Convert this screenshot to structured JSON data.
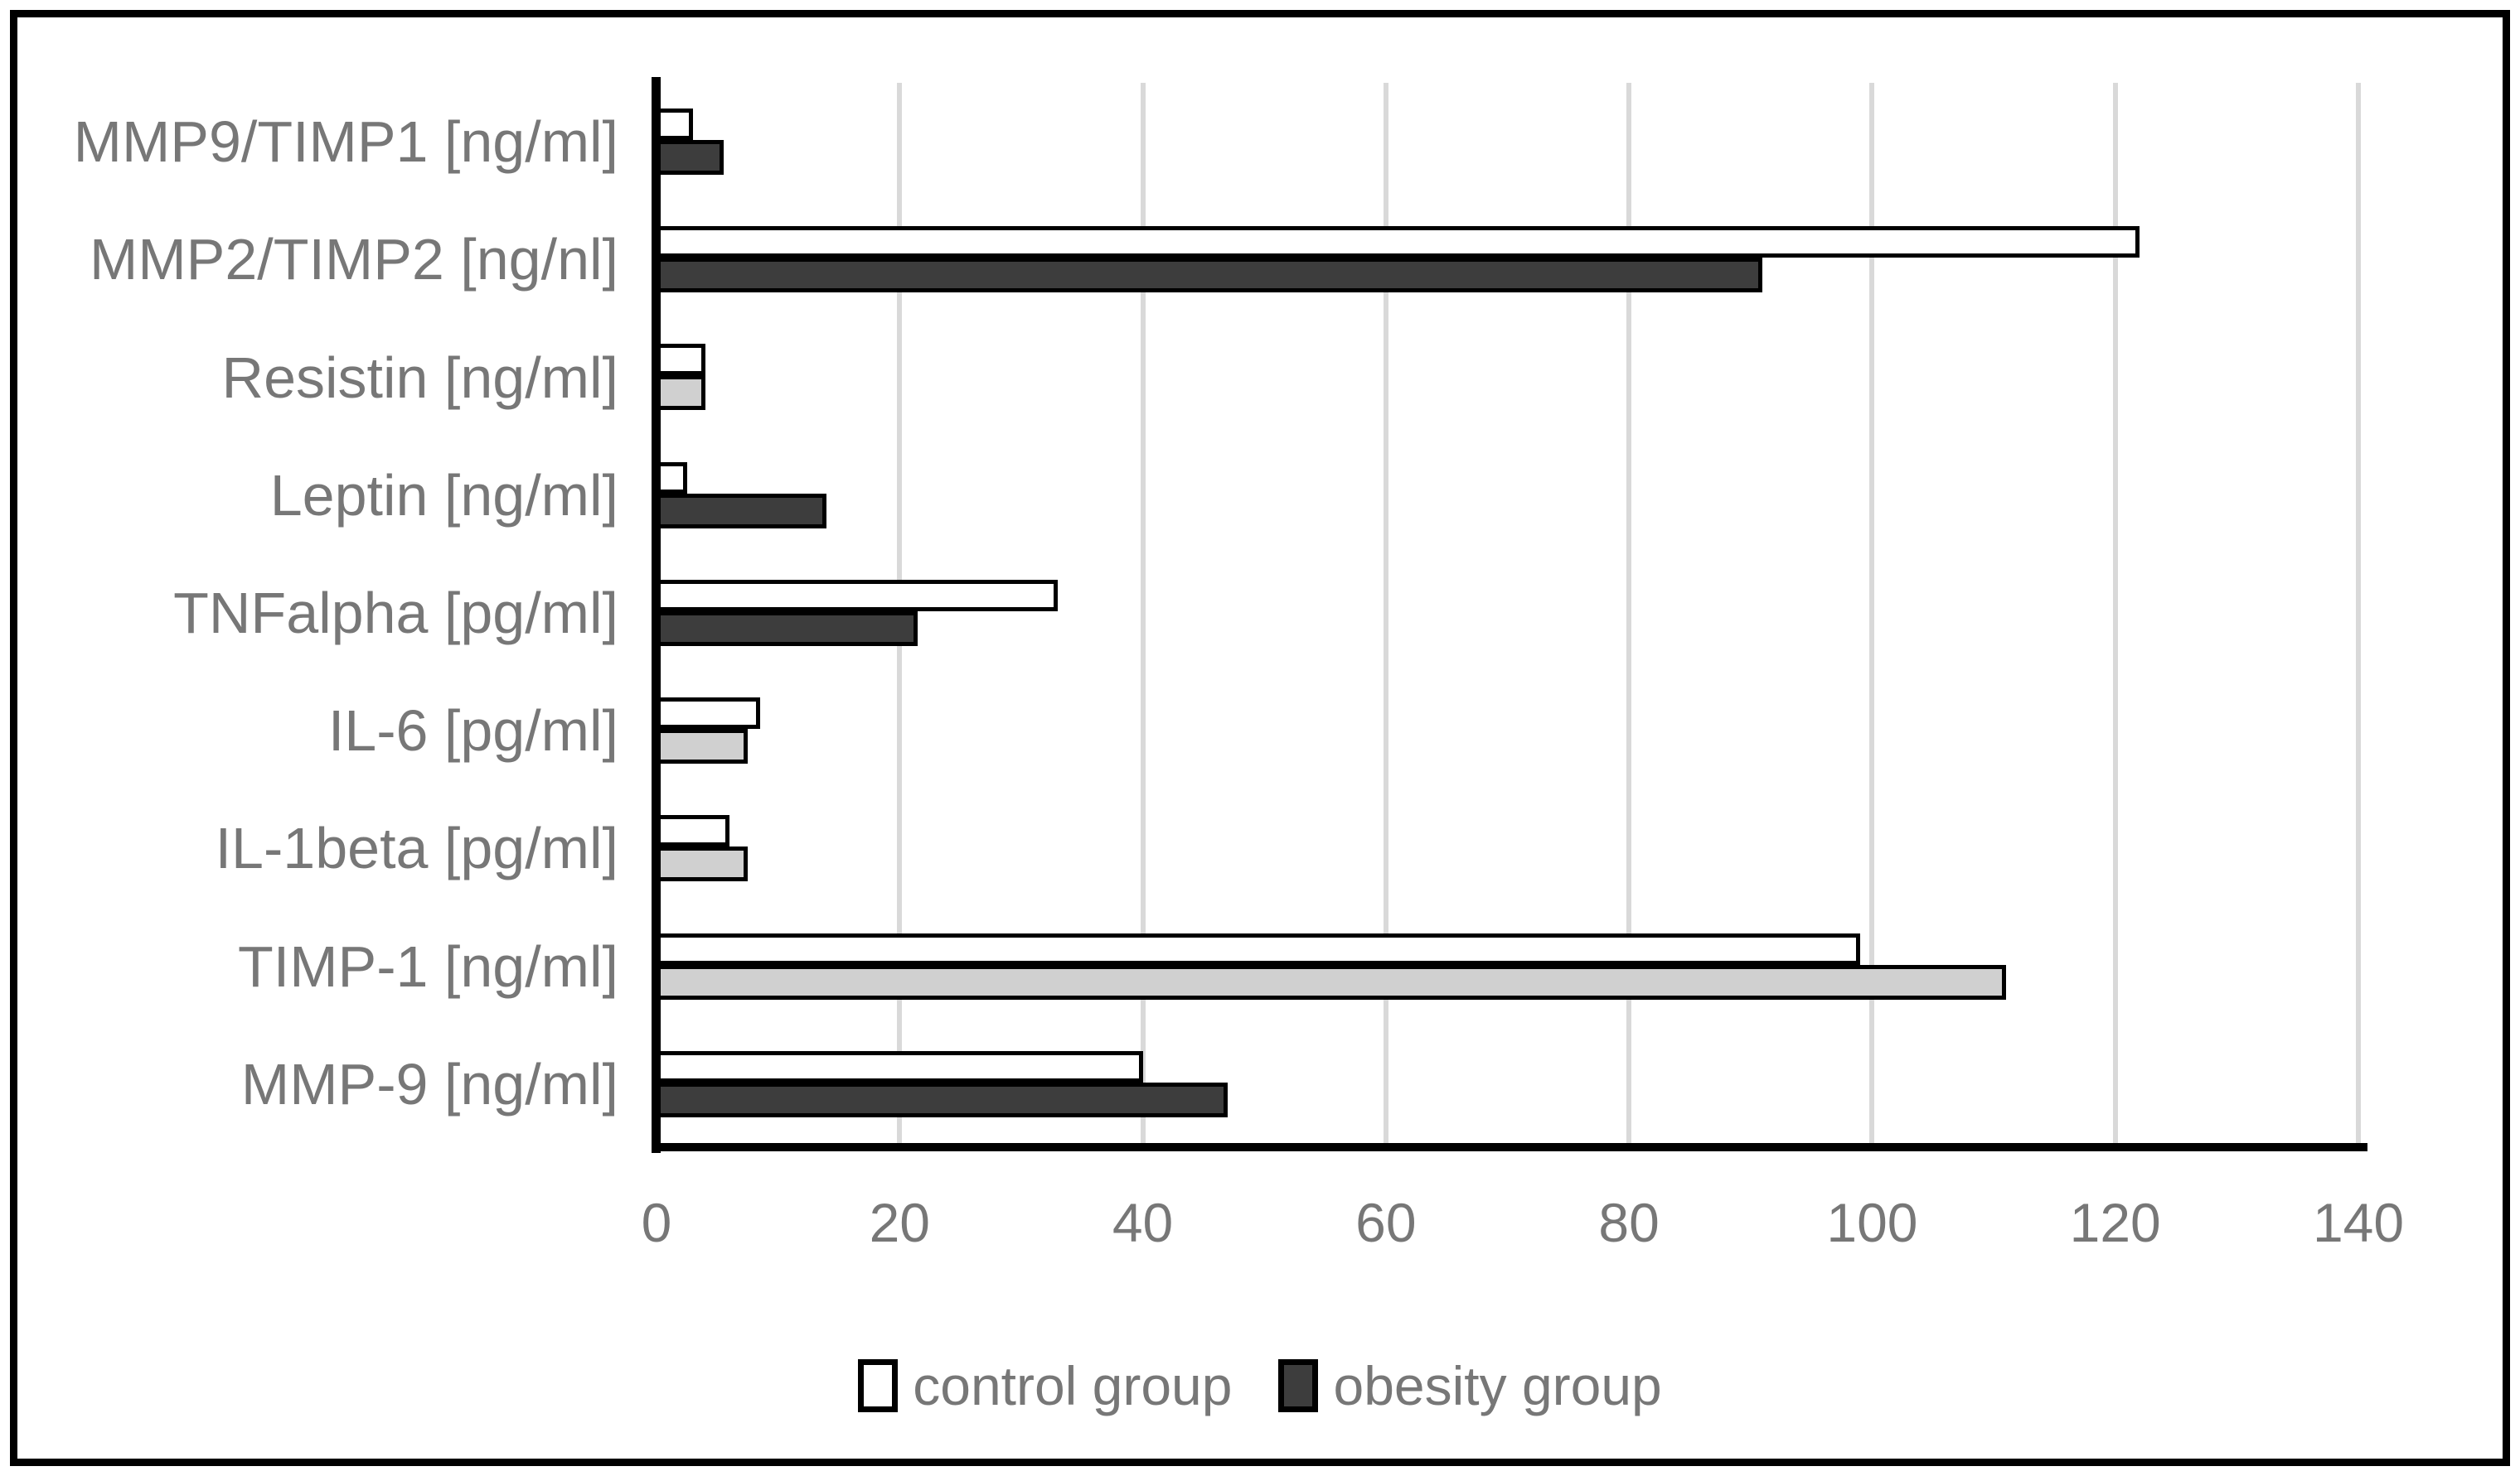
{
  "figure": {
    "background": "#ffffff",
    "border_color": "#000000"
  },
  "chart_data": {
    "type": "bar",
    "orientation": "horizontal",
    "title": "",
    "xlabel": "",
    "ylabel": "",
    "xlim": [
      0,
      140
    ],
    "xticks": [
      0,
      20,
      40,
      60,
      80,
      100,
      120,
      140
    ],
    "grid": "vertical",
    "legend_position": "bottom",
    "categories": [
      "MMP9/TIMP1 [ng/ml]",
      "MMP2/TIMP2 [ng/nl]",
      "Resistin [ng/ml]",
      "Leptin [ng/ml]",
      "TNFalpha [pg/ml]",
      "IL-6 [pg/ml]",
      "IL-1beta [pg/ml]",
      "TIMP-1 [ng/ml]",
      "MMP-9 [ng/ml]"
    ],
    "series": [
      {
        "name": "control group",
        "fill": "#ffffff",
        "border": "#000000",
        "values": [
          3,
          122,
          4,
          2.5,
          33,
          8.5,
          6,
          99,
          40
        ]
      },
      {
        "name": "obesity group",
        "fill": "#3d3d3d",
        "border": "#000000",
        "values": [
          5.5,
          91,
          4,
          14,
          21.5,
          7.5,
          7.5,
          111,
          47
        ],
        "bar_fills": [
          "#3d3d3d",
          "#3d3d3d",
          "#d0d0d0",
          "#3d3d3d",
          "#3d3d3d",
          "#d0d0d0",
          "#d0d0d0",
          "#d0d0d0",
          "#3d3d3d"
        ]
      }
    ]
  },
  "legend": {
    "items": [
      {
        "label": "control group",
        "swatch_fill": "#ffffff"
      },
      {
        "label": "obesity group",
        "swatch_fill": "#3d3d3d"
      }
    ]
  },
  "colors": {
    "gridline": "#d9d9d9",
    "axis": "#000000",
    "text": "#777777"
  }
}
